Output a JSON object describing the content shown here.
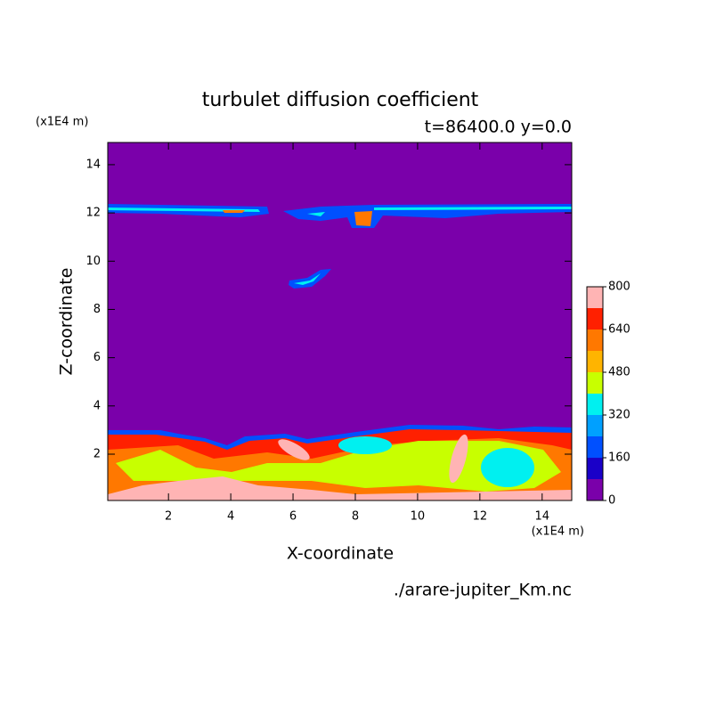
{
  "chart_data": {
    "type": "contour",
    "title": "turbulet diffusion coefficient",
    "subtitle": "t=86400.0 y=0.0",
    "x_label": "X-coordinate",
    "y_label": "Z-coordinate",
    "x_unit": "(x1E4 m)",
    "y_unit": "(x1E4 m)",
    "source": "./arare-jupiter_Km.nc",
    "xlim": [
      0.05,
      14.95
    ],
    "xticks": [
      2,
      4,
      6,
      8,
      10,
      12,
      14
    ],
    "ylim": [
      0.08,
      14.92
    ],
    "yticks": [
      2,
      4,
      6,
      8,
      10,
      12,
      14
    ],
    "levels": [
      0,
      80,
      160,
      240,
      320,
      400,
      480,
      560,
      640,
      720,
      800
    ],
    "colors": [
      "#7a00aa",
      "#1a00c8",
      "#0050ff",
      "#00a0ff",
      "#00f0f0",
      "#c8ff00",
      "#ffb400",
      "#ff7800",
      "#ff2000",
      "#ffb4b4"
    ],
    "colorbar_ticks": [
      0,
      160,
      320,
      480,
      640,
      800
    ]
  }
}
